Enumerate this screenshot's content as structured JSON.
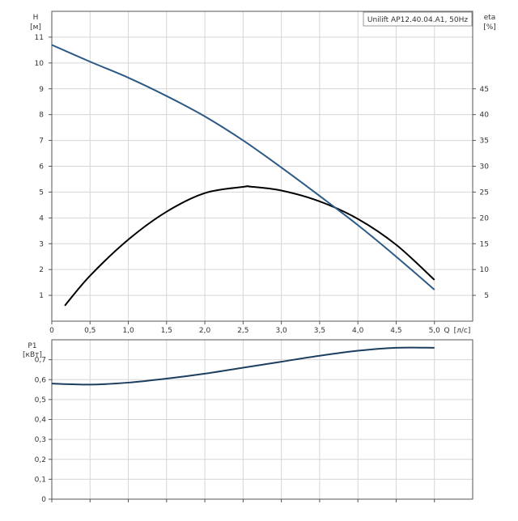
{
  "chart_data": [
    {
      "type": "line",
      "title": "Unilift AP12.40.04.A1, 50Hz",
      "ylabel_left": "H",
      "ylabel_left_unit": "[м]",
      "ylabel_right": "eta",
      "ylabel_right_unit": "[%]",
      "xlabel": "Q",
      "xlabel_unit": "[л/с]",
      "xlim": [
        0,
        5.5
      ],
      "ylim": [
        0,
        12
      ],
      "ylim_right": [
        0,
        60
      ],
      "grid": true,
      "x_ticks": [
        "0",
        "0,5",
        "1,0",
        "1,5",
        "2,0",
        "2,5",
        "3,0",
        "3,5",
        "4,0",
        "4,5",
        "5,0"
      ],
      "y_ticks": [
        "1",
        "2",
        "3",
        "4",
        "5",
        "6",
        "7",
        "8",
        "9",
        "10",
        "11"
      ],
      "y2_ticks": [
        "5",
        "10",
        "15",
        "20",
        "25",
        "30",
        "35",
        "40",
        "45"
      ],
      "series": [
        {
          "axis": "left",
          "color": "#2c5a85",
          "x": [
            0,
            0.5,
            1.0,
            1.5,
            2.0,
            2.5,
            3.0,
            3.5,
            4.0,
            4.5,
            5.0
          ],
          "y": [
            10.7,
            10.05,
            9.43,
            8.72,
            7.93,
            7.0,
            5.95,
            4.85,
            3.72,
            2.5,
            1.22
          ]
        },
        {
          "axis": "right",
          "color": "#000000",
          "x": [
            0.17,
            0.5,
            1.0,
            1.5,
            2.0,
            2.5,
            2.6,
            3.0,
            3.5,
            4.0,
            4.5,
            5.0
          ],
          "y": [
            3,
            8.8,
            15.8,
            21.2,
            24.8,
            26.0,
            26.05,
            25.3,
            23.2,
            19.8,
            14.8,
            8.0
          ]
        }
      ]
    },
    {
      "type": "line",
      "ylabel": "P1",
      "ylabel_unit": "[кВт]",
      "xlim": [
        0,
        5.5
      ],
      "ylim": [
        0,
        0.8
      ],
      "grid": true,
      "y_ticks": [
        "0",
        "0,1",
        "0,2",
        "0,3",
        "0,4",
        "0,5",
        "0,6",
        "0,7"
      ],
      "series": [
        {
          "color": "#1c3f60",
          "x": [
            0,
            0.5,
            1.0,
            1.5,
            2.0,
            2.5,
            3.0,
            3.5,
            4.0,
            4.5,
            5.0
          ],
          "y": [
            0.58,
            0.575,
            0.585,
            0.605,
            0.63,
            0.66,
            0.69,
            0.72,
            0.745,
            0.76,
            0.76
          ]
        }
      ]
    }
  ]
}
